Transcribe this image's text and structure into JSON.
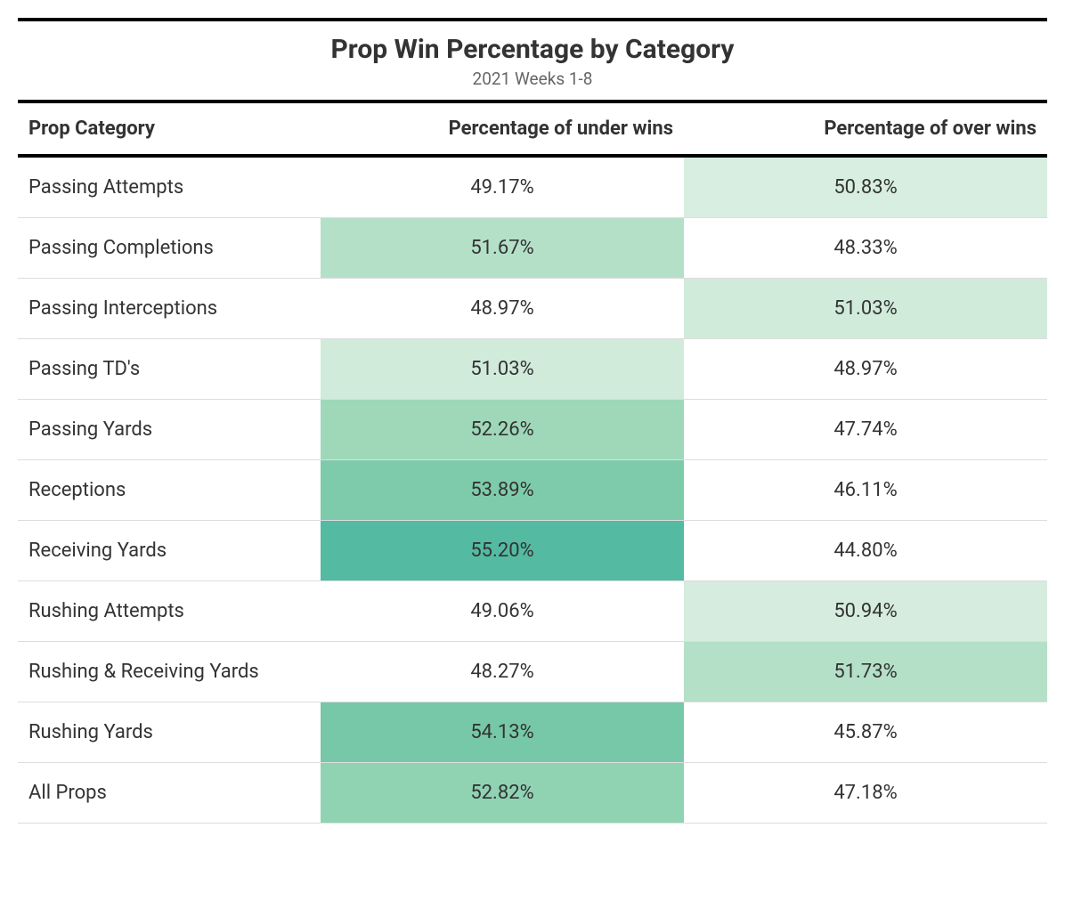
{
  "table": {
    "title": "Prop Win Percentage by Category",
    "subtitle": "2021 Weeks 1-8",
    "columns": {
      "category": "Prop Category",
      "under": "Percentage of under wins",
      "over": "Percentage of over wins"
    },
    "background_color": "#ffffff",
    "border_color": "#000000",
    "row_border_color": "#dddddd",
    "text_color": "#333333",
    "subtitle_color": "#666666",
    "title_fontsize": 30,
    "header_fontsize": 22,
    "body_fontsize": 22,
    "rows": [
      {
        "category": "Passing Attempts",
        "under": "49.17%",
        "over": "50.83%",
        "under_bg": "#ffffff",
        "over_bg": "#d7eee0"
      },
      {
        "category": "Passing Completions",
        "under": "51.67%",
        "over": "48.33%",
        "under_bg": "#b4e0c8",
        "over_bg": "#ffffff"
      },
      {
        "category": "Passing Interceptions",
        "under": "48.97%",
        "over": "51.03%",
        "under_bg": "#ffffff",
        "over_bg": "#d1ebdb"
      },
      {
        "category": "Passing TD's",
        "under": "51.03%",
        "over": "48.97%",
        "under_bg": "#d1ebdb",
        "over_bg": "#ffffff"
      },
      {
        "category": "Passing Yards",
        "under": "52.26%",
        "over": "47.74%",
        "under_bg": "#9ed8b9",
        "over_bg": "#ffffff"
      },
      {
        "category": "Receptions",
        "under": "53.89%",
        "over": "46.11%",
        "under_bg": "#7ecbab",
        "over_bg": "#ffffff"
      },
      {
        "category": "Receiving Yards",
        "under": "55.20%",
        "over": "44.80%",
        "under_bg": "#54baa2",
        "over_bg": "#ffffff"
      },
      {
        "category": "Rushing Attempts",
        "under": "49.06%",
        "over": "50.94%",
        "under_bg": "#ffffff",
        "over_bg": "#d5ecde"
      },
      {
        "category": "Rushing & Receiving Yards",
        "under": "48.27%",
        "over": "51.73%",
        "under_bg": "#ffffff",
        "over_bg": "#b4e0c8"
      },
      {
        "category": "Rushing Yards",
        "under": "54.13%",
        "over": "45.87%",
        "under_bg": "#76c8a8",
        "over_bg": "#ffffff"
      },
      {
        "category": "All Props",
        "under": "52.82%",
        "over": "47.18%",
        "under_bg": "#8fd3b2",
        "over_bg": "#ffffff"
      }
    ]
  }
}
